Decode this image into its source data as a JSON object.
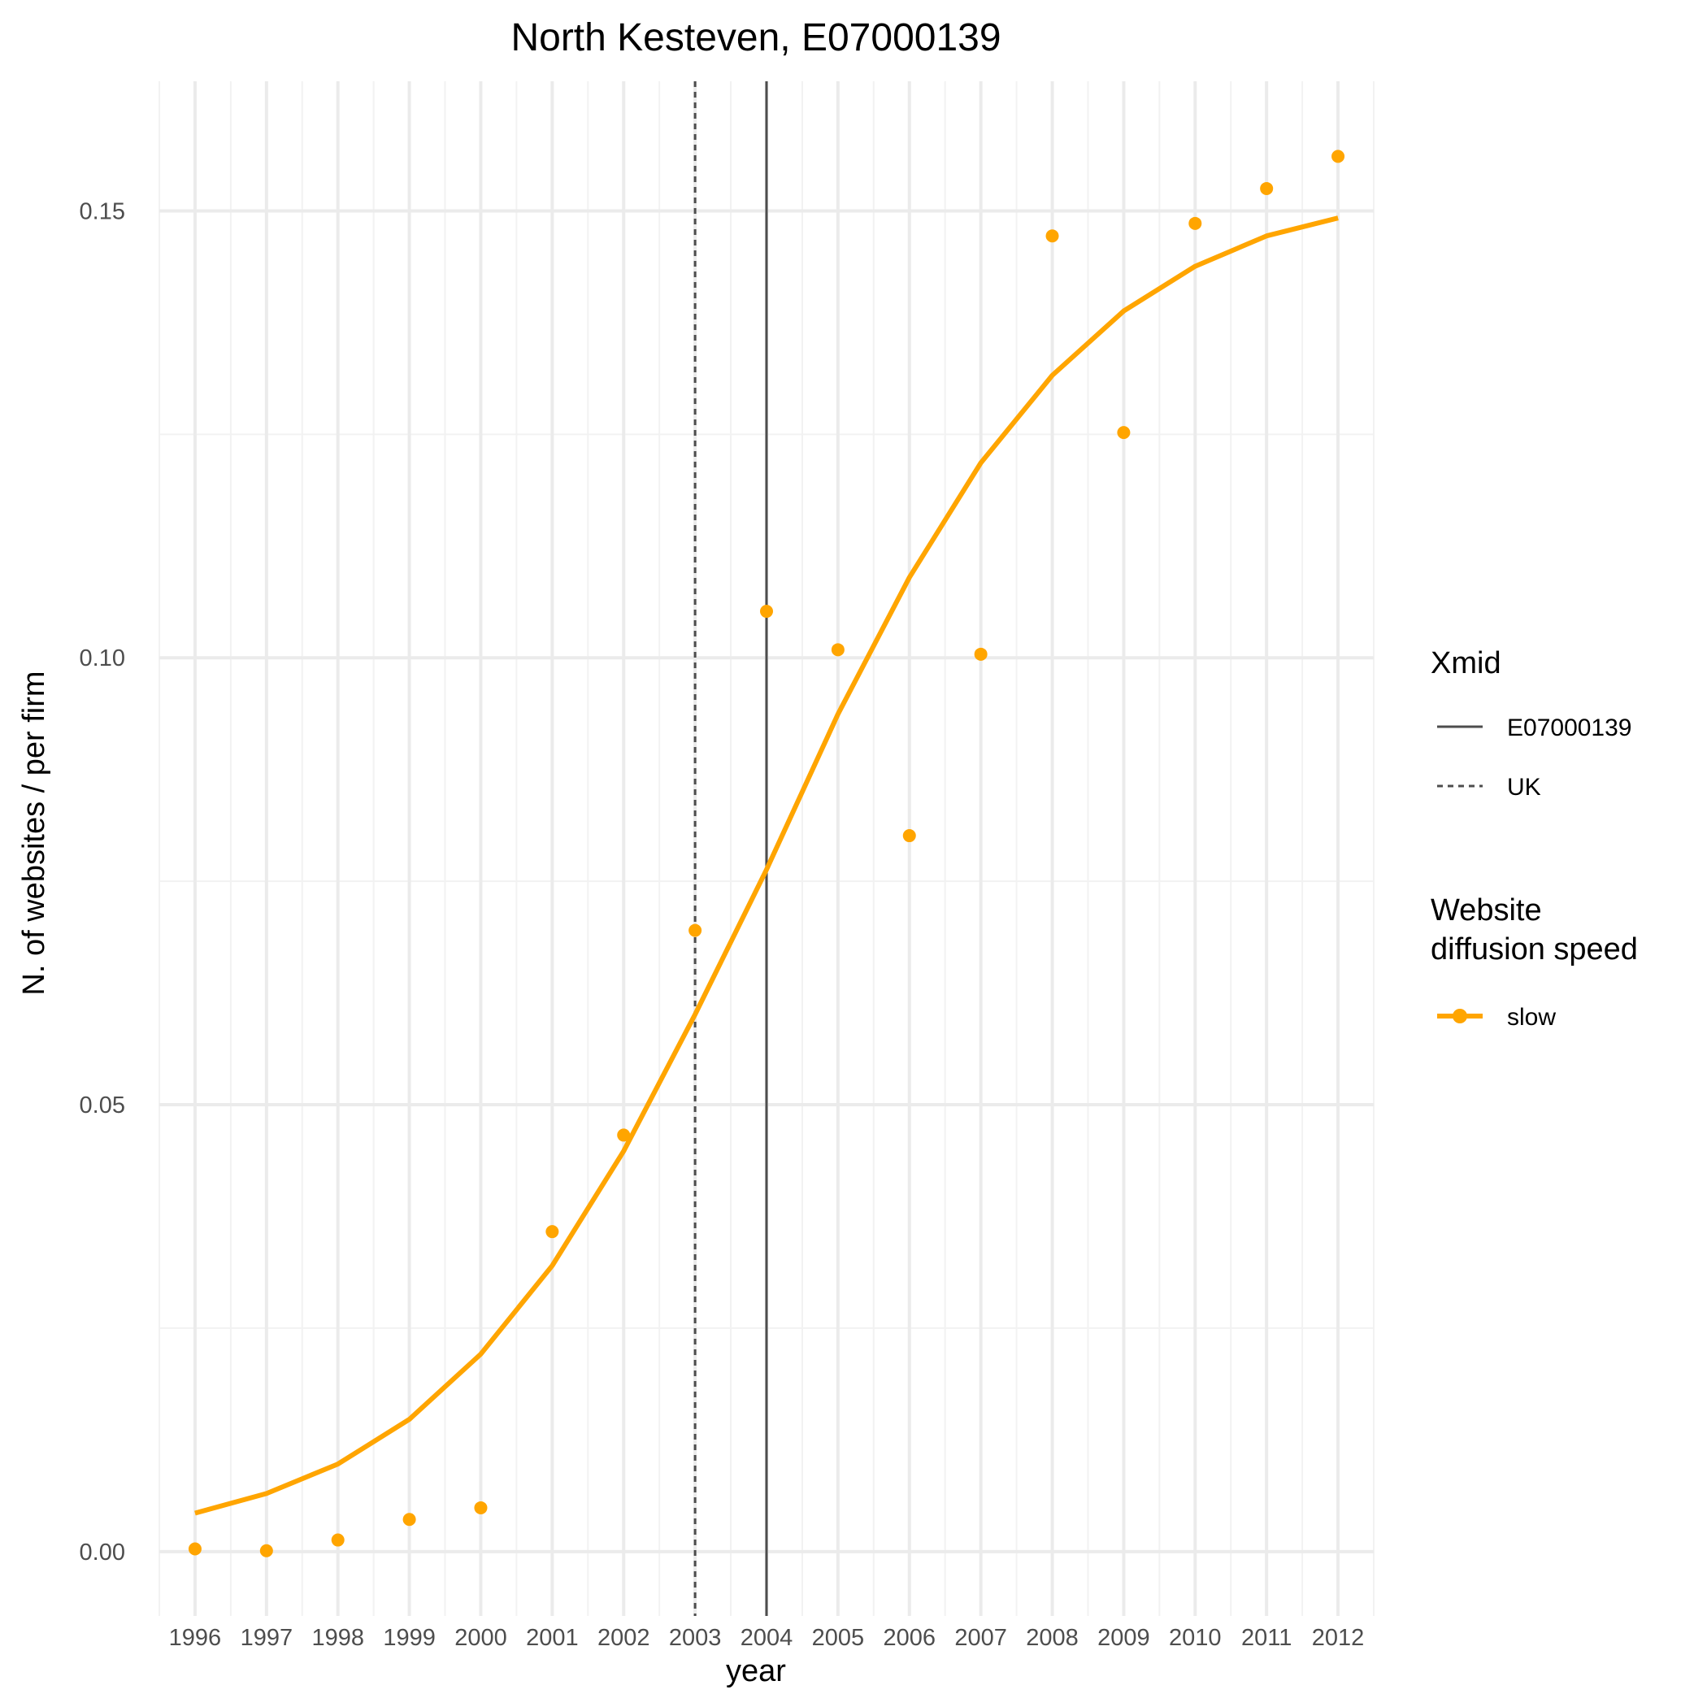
{
  "chart_data": {
    "type": "line",
    "title": "North Kesteven, E07000139",
    "xlabel": "year",
    "ylabel": "N. of websites / per firm",
    "x": [
      1996,
      1997,
      1998,
      1999,
      2000,
      2001,
      2002,
      2003,
      2004,
      2005,
      2006,
      2007,
      2008,
      2009,
      2010,
      2011,
      2012
    ],
    "x_tick_labels": [
      "1996",
      "1997",
      "1998",
      "1999",
      "2000",
      "2001",
      "2002",
      "2003",
      "2004",
      "2005",
      "2006",
      "2007",
      "2008",
      "2009",
      "2010",
      "2011",
      "2012"
    ],
    "y_ticks": [
      0.0,
      0.05,
      0.1,
      0.15
    ],
    "y_tick_labels": [
      "0.00",
      "0.05",
      "0.10",
      "0.15"
    ],
    "xlim": [
      1995.5,
      2012.5
    ],
    "ylim": [
      -0.0072,
      0.1645
    ],
    "grid": true,
    "series": [
      {
        "name": "slow",
        "color": "#FFA500",
        "points": [
          0.0003,
          0.0001,
          0.0013,
          0.0036,
          0.0049,
          0.0358,
          0.0466,
          0.0695,
          0.1052,
          0.1009,
          0.0801,
          0.1004,
          0.1472,
          0.1252,
          0.1486,
          0.1525,
          0.1561
        ],
        "fitted": [
          0.0043,
          0.0065,
          0.0098,
          0.0148,
          0.0221,
          0.032,
          0.0448,
          0.0601,
          0.0763,
          0.0937,
          0.109,
          0.1218,
          0.1316,
          0.1388,
          0.1438,
          0.1472,
          0.1492
        ]
      }
    ],
    "vlines": [
      {
        "name": "E07000139",
        "x": 2004,
        "style": "solid",
        "color": "#4d4d4d"
      },
      {
        "name": "UK",
        "x": 2003,
        "style": "dashed",
        "color": "#4d4d4d"
      }
    ],
    "legend": {
      "placement": "right",
      "xmid_title": "Xmid",
      "xmid_items": [
        "E07000139",
        "UK"
      ],
      "speed_title_line1": "Website",
      "speed_title_line2": "diffusion speed",
      "speed_items": [
        "slow"
      ]
    }
  }
}
